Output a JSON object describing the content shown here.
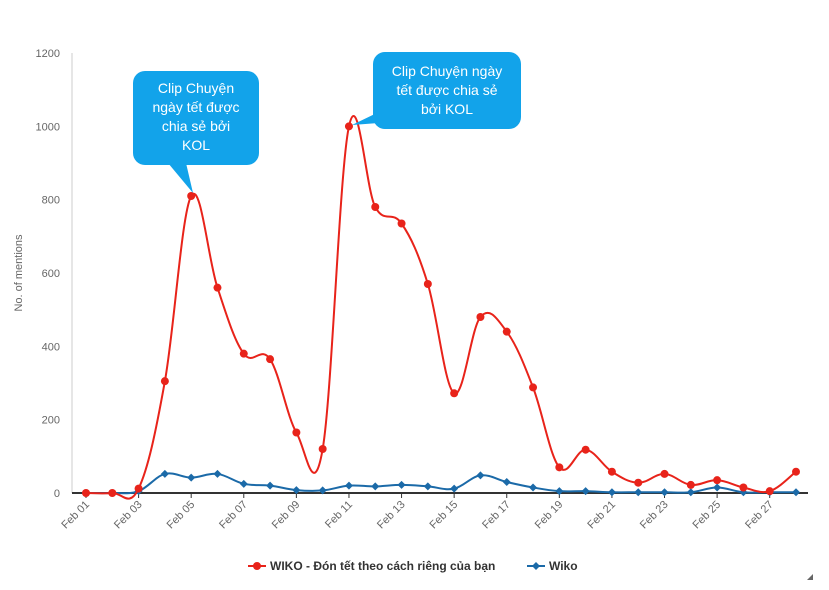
{
  "chart_data": {
    "type": "line",
    "ylabel": "No. of mentions",
    "xlabel": "",
    "title": "",
    "ylim": [
      0,
      1200
    ],
    "yticks": [
      0,
      200,
      400,
      600,
      800,
      1000,
      1200
    ],
    "x": [
      "Feb 01",
      "Feb 02",
      "Feb 03",
      "Feb 04",
      "Feb 05",
      "Feb 06",
      "Feb 07",
      "Feb 08",
      "Feb 09",
      "Feb 10",
      "Feb 11",
      "Feb 12",
      "Feb 13",
      "Feb 14",
      "Feb 15",
      "Feb 16",
      "Feb 17",
      "Feb 18",
      "Feb 19",
      "Feb 20",
      "Feb 21",
      "Feb 22",
      "Feb 23",
      "Feb 24",
      "Feb 25",
      "Feb 26",
      "Feb 27",
      "Feb 28"
    ],
    "xtick_labels": [
      "Feb 01",
      "Feb 03",
      "Feb 05",
      "Feb 07",
      "Feb 09",
      "Feb 11",
      "Feb 13",
      "Feb 15",
      "Feb 17",
      "Feb 19",
      "Feb 21",
      "Feb 23",
      "Feb 25",
      "Feb 27"
    ],
    "series": [
      {
        "name": "WIKO - Đón tết theo cách riêng của bạn",
        "color": "#e8231a",
        "marker": "circle",
        "values": [
          0,
          0,
          12,
          305,
          810,
          560,
          380,
          365,
          165,
          120,
          1000,
          780,
          735,
          570,
          272,
          480,
          440,
          288,
          70,
          118,
          58,
          28,
          52,
          22,
          35,
          15,
          5,
          58
        ]
      },
      {
        "name": "Wiko",
        "color": "#1b6aa8",
        "marker": "diamond",
        "values": [
          0,
          0,
          5,
          52,
          42,
          52,
          25,
          20,
          8,
          7,
          20,
          18,
          22,
          18,
          12,
          48,
          30,
          15,
          5,
          5,
          2,
          2,
          2,
          2,
          15,
          2,
          2,
          2
        ]
      }
    ],
    "annotations": [
      {
        "text": "Clip Chuyện ngày tết được chia sẻ bởi KOL",
        "x": "Feb 05"
      },
      {
        "text": "Clip Chuyện ngày tết được chia sẻ bởi KOL",
        "x": "Feb 11"
      }
    ],
    "legend": "bottom-center",
    "grid": false
  },
  "callouts": [
    {
      "line1": "Clip Chuyện",
      "line2": "ngày tết được",
      "line3": "chia sẻ bởi",
      "line4": "KOL"
    },
    {
      "line1": "Clip Chuyện ngày",
      "line2": "tết được chia sẻ",
      "line3": "bởi KOL"
    }
  ]
}
